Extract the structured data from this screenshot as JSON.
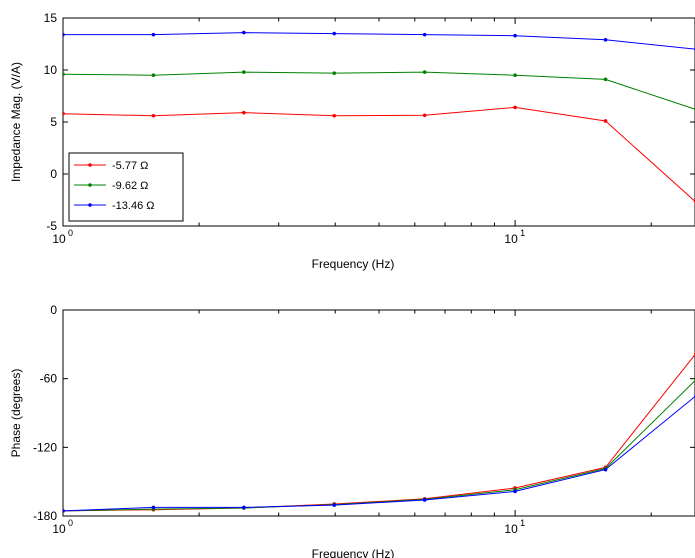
{
  "chart_data": [
    {
      "type": "line",
      "xscale": "log",
      "xlabel": "Frequency (Hz)",
      "ylabel": "Impedance Mag. (V/A)",
      "xlim": [
        1,
        25
      ],
      "ylim": [
        -5,
        15
      ],
      "yticks": [
        -5,
        0,
        5,
        10,
        15
      ],
      "xticklabels": [
        {
          "value": 1,
          "base": "10",
          "exp": "0"
        },
        {
          "value": 10,
          "base": "10",
          "exp": "1"
        }
      ],
      "x": [
        1,
        1.585,
        2.512,
        3.981,
        6.31,
        10,
        15.85,
        25.12
      ],
      "series": [
        {
          "name": "-5.77 Ω",
          "color": "#ff0000",
          "values": [
            5.8,
            5.6,
            5.9,
            5.6,
            5.65,
            6.4,
            5.1,
            -2.7
          ]
        },
        {
          "name": "-9.62 Ω",
          "color": "#008000",
          "values": [
            9.6,
            9.5,
            9.8,
            9.7,
            9.8,
            9.5,
            9.1,
            6.2
          ]
        },
        {
          "name": "-13.46 Ω",
          "color": "#0000ff",
          "values": [
            13.4,
            13.4,
            13.6,
            13.5,
            13.4,
            13.3,
            12.9,
            12.0
          ]
        }
      ],
      "legend": "lower-left",
      "grid": false
    },
    {
      "type": "line",
      "xscale": "log",
      "xlabel": "Frequency (Hz)",
      "ylabel": "Phase (degrees)",
      "xlim": [
        1,
        25
      ],
      "ylim": [
        -180,
        0
      ],
      "yticks": [
        -180,
        -120,
        -60,
        0
      ],
      "xticklabels": [
        {
          "value": 1,
          "base": "10",
          "exp": "0"
        },
        {
          "value": 10,
          "base": "10",
          "exp": "1"
        }
      ],
      "x": [
        1,
        1.585,
        2.512,
        3.981,
        6.31,
        10,
        15.85,
        25.12
      ],
      "series": [
        {
          "color": "#ff0000",
          "values": [
            -175.5,
            -174.5,
            -173,
            -169.5,
            -165,
            -155.5,
            -137.5,
            -38
          ]
        },
        {
          "color": "#008000",
          "values": [
            -175.5,
            -174,
            -173,
            -170,
            -165.5,
            -157,
            -138.5,
            -61
          ]
        },
        {
          "color": "#0000ff",
          "values": [
            -175.5,
            -172.5,
            -172.5,
            -170.5,
            -166,
            -158.5,
            -139.5,
            -75
          ]
        }
      ],
      "grid": false
    }
  ]
}
